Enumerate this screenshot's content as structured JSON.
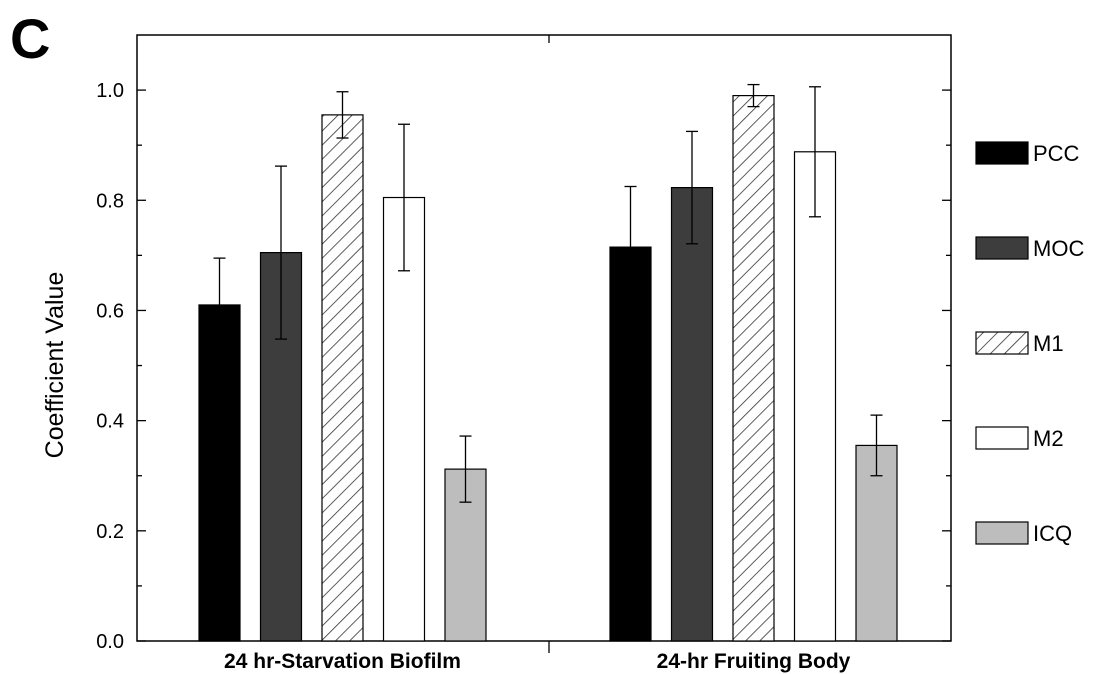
{
  "panel_label": "C",
  "colors": {
    "PCC": "#000000",
    "MOC": "#3d3d3d",
    "M1": "hatch",
    "M2": "#ffffff",
    "ICQ": "#bdbdbd"
  },
  "chart_data": {
    "type": "bar",
    "ylabel": "Coefficient Value",
    "xlabel": "",
    "ylim": [
      0,
      1.1
    ],
    "yticks": [
      "0.0",
      "0.2",
      "0.4",
      "0.6",
      "0.8",
      "1.0"
    ],
    "categories": [
      "24 hr-Starvation Biofilm",
      "24-hr Fruiting Body"
    ],
    "legend_position": "right",
    "grid": false,
    "series": [
      {
        "name": "PCC",
        "values": [
          0.61,
          0.715
        ],
        "errors": [
          0.085,
          0.11
        ]
      },
      {
        "name": "MOC",
        "values": [
          0.705,
          0.823
        ],
        "errors": [
          0.157,
          0.102
        ]
      },
      {
        "name": "M1",
        "values": [
          0.955,
          0.99
        ],
        "errors": [
          0.042,
          0.02
        ]
      },
      {
        "name": "M2",
        "values": [
          0.805,
          0.888
        ],
        "errors": [
          0.133,
          0.118
        ]
      },
      {
        "name": "ICQ",
        "values": [
          0.312,
          0.355
        ],
        "errors": [
          0.06,
          0.055
        ]
      }
    ]
  }
}
